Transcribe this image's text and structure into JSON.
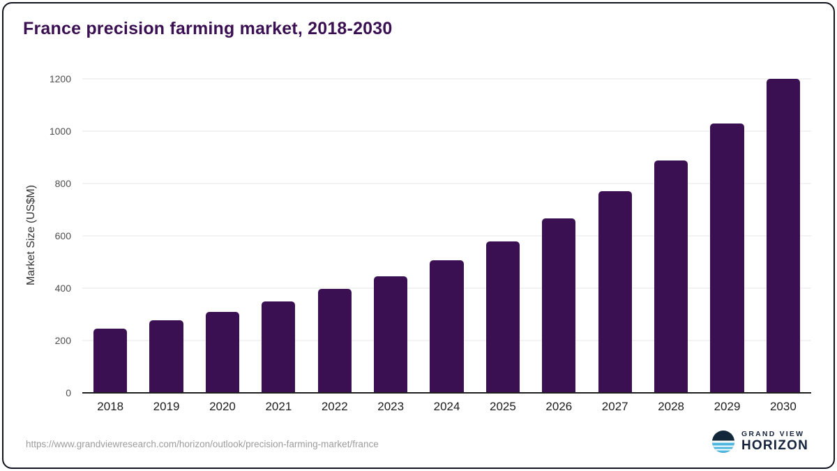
{
  "title": "France precision farming market, 2018-2030",
  "source_url": "https://www.grandviewresearch.com/horizon/outlook/precision-farming-market/france",
  "logo": {
    "top": "GRAND VIEW",
    "bottom": "HORIZON"
  },
  "colors": {
    "bar": "#3b1053",
    "title": "#3b1053",
    "gridline": "#e7e7e7",
    "baseline": "#1e1e1e",
    "logo_navy": "#16233c",
    "logo_blue": "#4db7e0"
  },
  "chart_data": {
    "type": "bar",
    "title": "France precision farming market, 2018-2030",
    "categories": [
      "2018",
      "2019",
      "2020",
      "2021",
      "2022",
      "2023",
      "2024",
      "2025",
      "2026",
      "2027",
      "2028",
      "2029",
      "2030"
    ],
    "values": [
      246,
      278,
      310,
      350,
      397,
      446,
      508,
      580,
      668,
      770,
      888,
      1030,
      1200
    ],
    "xlabel": "",
    "ylabel": "Market Size (US$M)",
    "ylim": [
      0,
      1200
    ],
    "yticks": [
      0,
      200,
      400,
      600,
      800,
      1000,
      1200
    ],
    "grid": "horizontal",
    "legend": "none"
  }
}
